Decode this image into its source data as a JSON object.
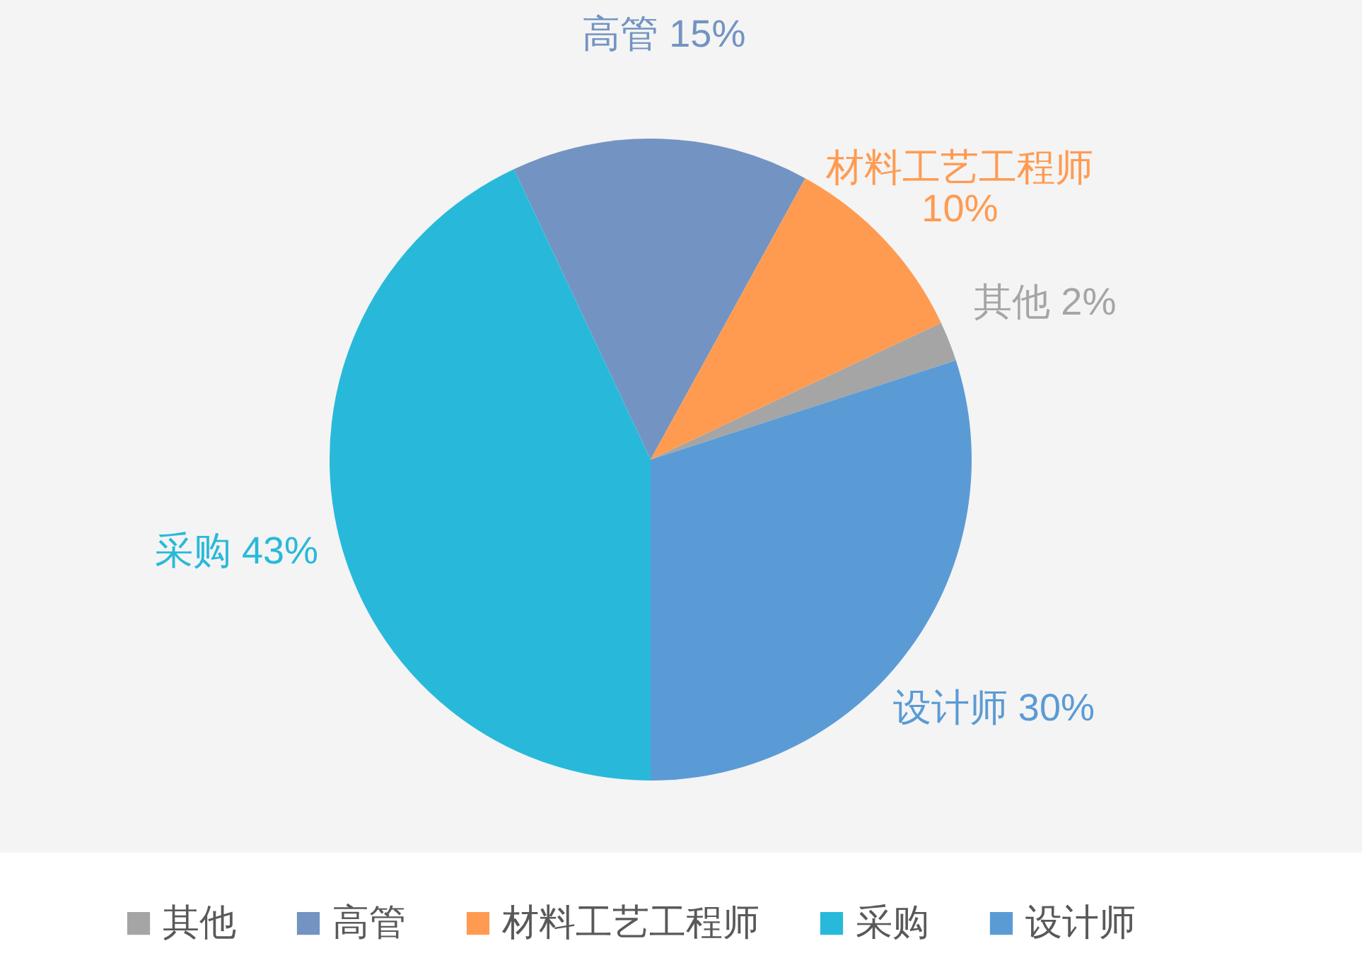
{
  "chart_data": {
    "type": "pie",
    "categories": [
      "其他",
      "高管",
      "材料工艺工程师",
      "采购",
      "设计师"
    ],
    "values": [
      2,
      15,
      10,
      43,
      30
    ],
    "colors": [
      "#a5a5a5",
      "#7394c2",
      "#ff9b51",
      "#28b9da",
      "#5b9bd5"
    ],
    "value_labels": [
      "2%",
      "15%",
      "10%",
      "43%",
      "30%"
    ],
    "legend": "bottom"
  }
}
